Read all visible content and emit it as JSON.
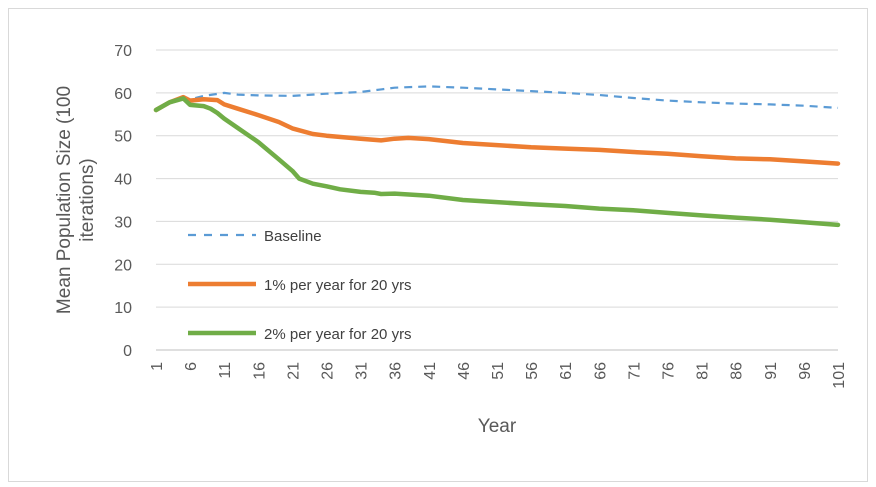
{
  "chart_data": {
    "type": "line",
    "title": "",
    "xlabel": "Year",
    "ylabel": "Mean Population Size (100 iterations)",
    "ylim": [
      0,
      70
    ],
    "yticks": [
      0,
      10,
      20,
      30,
      40,
      50,
      60,
      70
    ],
    "xticks": [
      1,
      6,
      11,
      16,
      21,
      26,
      31,
      36,
      41,
      46,
      51,
      56,
      61,
      66,
      71,
      76,
      81,
      86,
      91,
      96,
      101
    ],
    "grid": "horizontal",
    "legend_position": "inside-lower-left",
    "series": [
      {
        "name": "Baseline",
        "color": "#5b9bd5",
        "style": "dashed",
        "points": [
          [
            1,
            56
          ],
          [
            3,
            57.8
          ],
          [
            5,
            58.7
          ],
          [
            6,
            58.5
          ],
          [
            8,
            59.3
          ],
          [
            11,
            60
          ],
          [
            13,
            59.6
          ],
          [
            16,
            59.4
          ],
          [
            21,
            59.3
          ],
          [
            26,
            59.8
          ],
          [
            31,
            60.2
          ],
          [
            36,
            61.2
          ],
          [
            41,
            61.5
          ],
          [
            46,
            61.2
          ],
          [
            51,
            60.8
          ],
          [
            56,
            60.4
          ],
          [
            61,
            60
          ],
          [
            66,
            59.5
          ],
          [
            71,
            58.8
          ],
          [
            76,
            58.2
          ],
          [
            81,
            57.8
          ],
          [
            86,
            57.5
          ],
          [
            91,
            57.3
          ],
          [
            96,
            57
          ],
          [
            101,
            56.5
          ]
        ]
      },
      {
        "name": "1% per year for 20 yrs",
        "color": "#ed7d31",
        "style": "solid",
        "points": [
          [
            1,
            56
          ],
          [
            3,
            57.8
          ],
          [
            5,
            59
          ],
          [
            6,
            58.2
          ],
          [
            8,
            58.5
          ],
          [
            10,
            58.3
          ],
          [
            11,
            57.3
          ],
          [
            13,
            56.3
          ],
          [
            16,
            54.8
          ],
          [
            19,
            53.2
          ],
          [
            21,
            51.7
          ],
          [
            24,
            50.4
          ],
          [
            26,
            50
          ],
          [
            31,
            49.3
          ],
          [
            34,
            48.9
          ],
          [
            36,
            49.3
          ],
          [
            38,
            49.5
          ],
          [
            41,
            49.2
          ],
          [
            46,
            48.3
          ],
          [
            51,
            47.8
          ],
          [
            56,
            47.3
          ],
          [
            61,
            47
          ],
          [
            66,
            46.7
          ],
          [
            71,
            46.2
          ],
          [
            76,
            45.8
          ],
          [
            81,
            45.2
          ],
          [
            86,
            44.7
          ],
          [
            91,
            44.5
          ],
          [
            96,
            44
          ],
          [
            101,
            43.5
          ]
        ]
      },
      {
        "name": "2% per year for 20 yrs",
        "color": "#70ad47",
        "style": "solid",
        "points": [
          [
            1,
            56
          ],
          [
            3,
            57.8
          ],
          [
            5,
            58.7
          ],
          [
            6,
            57.2
          ],
          [
            8,
            56.9
          ],
          [
            9,
            56.3
          ],
          [
            10,
            55.3
          ],
          [
            11,
            54
          ],
          [
            13,
            51.8
          ],
          [
            16,
            48.5
          ],
          [
            19,
            44.5
          ],
          [
            21,
            41.8
          ],
          [
            22,
            40
          ],
          [
            24,
            38.8
          ],
          [
            26,
            38.2
          ],
          [
            28,
            37.5
          ],
          [
            31,
            36.9
          ],
          [
            33,
            36.7
          ],
          [
            34,
            36.4
          ],
          [
            36,
            36.5
          ],
          [
            41,
            36
          ],
          [
            46,
            35
          ],
          [
            51,
            34.5
          ],
          [
            56,
            34
          ],
          [
            61,
            33.6
          ],
          [
            66,
            33
          ],
          [
            71,
            32.6
          ],
          [
            76,
            32
          ],
          [
            81,
            31.4
          ],
          [
            86,
            30.9
          ],
          [
            91,
            30.4
          ],
          [
            96,
            29.8
          ],
          [
            101,
            29.2
          ]
        ]
      }
    ]
  }
}
